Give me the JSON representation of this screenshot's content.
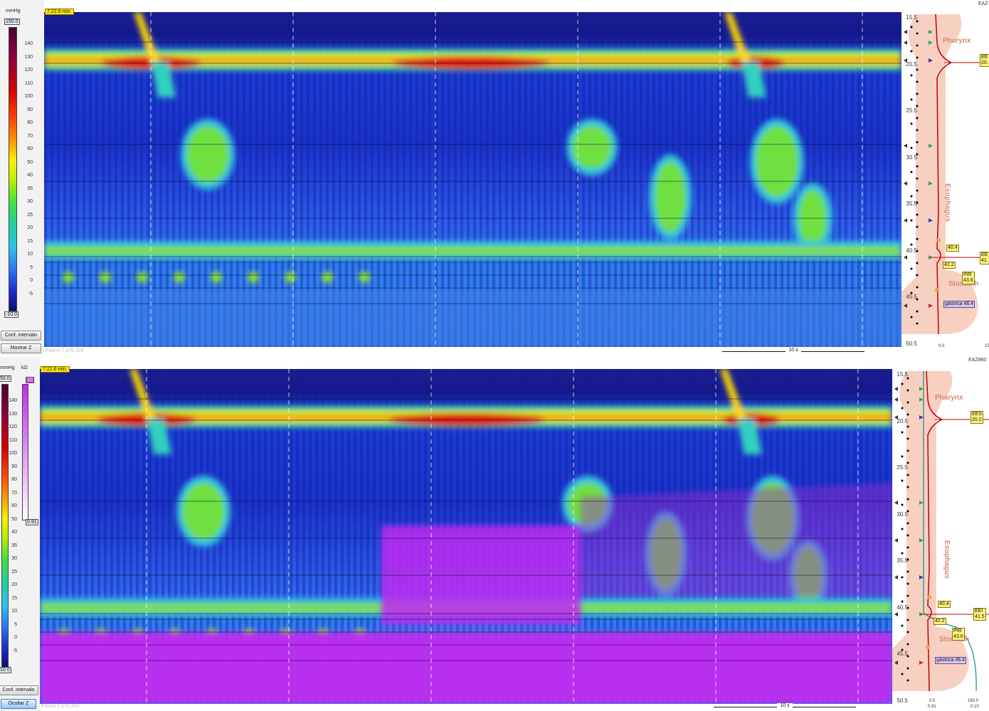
{
  "top_panel": {
    "time_label": "7:22.6 min.",
    "unit_label": "mmHg",
    "scale_max": "150.0",
    "scale_min": "-10.0",
    "ticks": [
      "140",
      "130",
      "120",
      "110",
      "100",
      "90",
      "80",
      "70",
      "60",
      "50",
      "40",
      "35",
      "30",
      "25",
      "20",
      "15",
      "10",
      "5",
      "0",
      "-5"
    ],
    "buttons": {
      "conf_interval": "Conf. intervalo",
      "show_z": "Mostrar Z"
    },
    "patent": "Patent 7,476,204",
    "scalebar_label": "10 s",
    "eaz_label": "EAZ",
    "depths": [
      "15.5",
      "20.5",
      "25.5",
      "30.5",
      "35.5",
      "40.5",
      "45.5",
      "50.5"
    ],
    "regions": {
      "pharynx": "Pharynx",
      "esophagus": "Esophagus",
      "stomach": "Stomach"
    },
    "tags": {
      "ees": "EE\n20.",
      "pt404": "40.4",
      "eei": "EE\n41.",
      "pt422": "42.2",
      "pir": "PIR\n43.6",
      "gastrica": "gástrica 46.4"
    },
    "axis_left": "0.0",
    "axis_right": "15"
  },
  "bottom_panel": {
    "time_label": "7:22.6 min.",
    "unit_label": "mmHg",
    "unit_label_z": "kΩ",
    "scale_max": "50.0",
    "scale_min": "10.0",
    "z_max": "10",
    "z_min": "0.91",
    "ticks": [
      "140",
      "130",
      "120",
      "110",
      "100",
      "90",
      "80",
      "70",
      "60",
      "50",
      "40",
      "35",
      "30",
      "25",
      "20",
      "15",
      "10",
      "5",
      "0",
      "-5"
    ],
    "buttons": {
      "conf_interval": "Conf. intervalo",
      "hide_z": "Ocultar Z"
    },
    "patent": "Patent 7,476,204",
    "scalebar_label": "10 s",
    "eaz_label": "EAZ860",
    "depths": [
      "15.5",
      "20.5",
      "25.5",
      "30.5",
      "35.5",
      "40.5",
      "45.5",
      "50.5"
    ],
    "regions": {
      "pharynx": "Pharynx",
      "esophagus": "Esophagus",
      "stomach": "Stomach"
    },
    "tags": {
      "ees": "EES\n20.2",
      "pt404": "40.4",
      "eei": "EEI\n41.5",
      "pt422": "42.2",
      "pir": "PIR\n43.6",
      "gastrica": "gástrica 46.4"
    },
    "axis_left_top": "0.0",
    "axis_right_top": "150.0",
    "axis_left_bottom": "0.91",
    "axis_right_bottom": "0.10"
  },
  "colors": {
    "background_low": "#14208a",
    "background_mid": "#2a55e0",
    "pressure_high": "#d40000",
    "impedance": "#c02cf0",
    "time_badge": "#ffe600",
    "anatomy": "#f5c8b8"
  }
}
